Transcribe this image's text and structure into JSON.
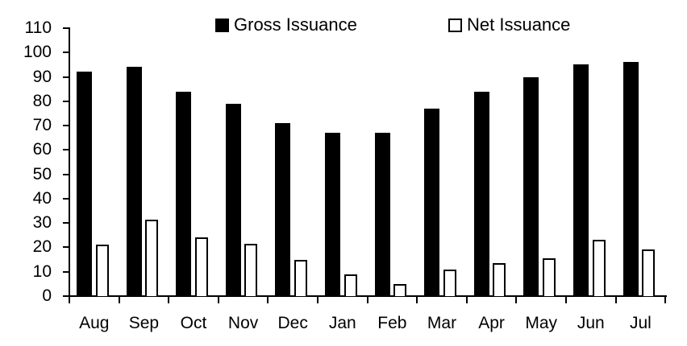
{
  "legend": {
    "gross_label": "Gross Issuance",
    "net_label": "Net Issuance"
  },
  "colors": {
    "gross_fill": "#000000",
    "net_fill": "#ffffff",
    "net_border": "#000000",
    "axis": "#000000",
    "background": "#ffffff"
  },
  "chart_data": {
    "type": "bar",
    "title": "",
    "xlabel": "",
    "ylabel": "",
    "grid": false,
    "legend_position": "top",
    "categories": [
      "Aug",
      "Sep",
      "Oct",
      "Nov",
      "Dec",
      "Jan",
      "Feb",
      "Mar",
      "Apr",
      "May",
      "Jun",
      "Jul"
    ],
    "series": [
      {
        "name": "Gross Issuance",
        "style": "solid-black",
        "values": [
          92,
          94,
          84,
          79,
          71,
          67,
          67,
          77,
          84,
          90,
          95,
          96
        ]
      },
      {
        "name": "Net Issuance",
        "style": "white-black-outline",
        "values": [
          21,
          31.5,
          24,
          21.5,
          15,
          9,
          5,
          11,
          13.5,
          15.5,
          23,
          19
        ]
      }
    ],
    "y_axis": {
      "min": 0,
      "max": 110,
      "step": 10,
      "tick_labels": [
        "0",
        "10",
        "20",
        "30",
        "40",
        "50",
        "60",
        "70",
        "80",
        "90",
        "100",
        "110"
      ]
    },
    "ylim": [
      0,
      110
    ]
  }
}
